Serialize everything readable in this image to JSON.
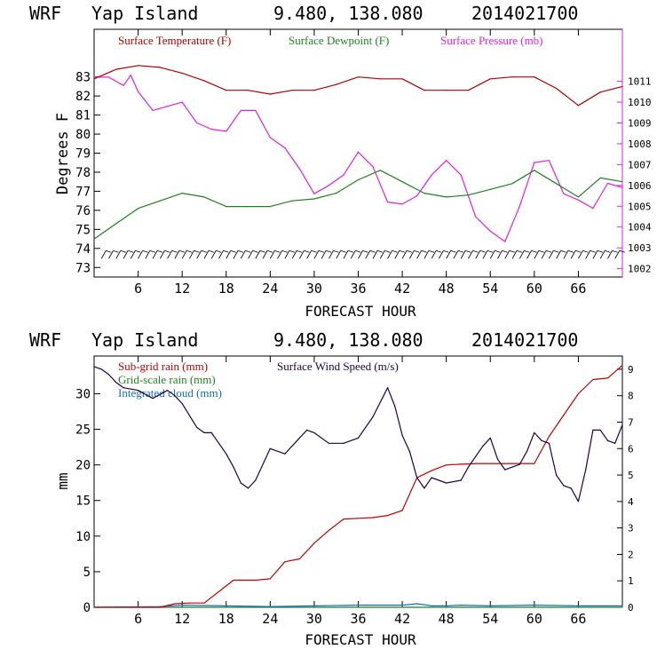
{
  "colors": {
    "temperature": "#b00000",
    "dewpoint": "#208020",
    "pressure": "#e020e0",
    "subgrid_rain": "#c00000",
    "gridscale_rain": "#208020",
    "cloud": "#1070c0",
    "wind": "#200040",
    "axes": "#000000"
  },
  "chart_data": [
    {
      "type": "line",
      "header": {
        "model": "WRF",
        "location": "Yap Island",
        "coords": "9.480, 138.080",
        "init": "2014021700"
      },
      "xlabel": "FORECAST HOUR",
      "ylabel": "Degrees F",
      "xlim": [
        0,
        72
      ],
      "ylim": [
        72.5,
        85.5
      ],
      "y2lim": [
        1001.6,
        1013.5
      ],
      "xticks": [
        6,
        12,
        18,
        24,
        30,
        36,
        42,
        48,
        54,
        60,
        66
      ],
      "yticks": [
        73,
        74,
        75,
        76,
        77,
        78,
        79,
        80,
        81,
        82,
        83
      ],
      "y2ticks": [
        1002,
        1003,
        1004,
        1005,
        1006,
        1007,
        1008,
        1009,
        1010,
        1011
      ],
      "legend": {
        "temperature": "Surface Temperature (F)",
        "dewpoint": "Surface Dewpoint (F)",
        "pressure": "Surface Pressure (mb)"
      },
      "wind_barb_level": 73.7,
      "series": [
        {
          "name": "Surface Temperature (F)",
          "axis": "left",
          "x": [
            0,
            3,
            6,
            9,
            12,
            15,
            18,
            21,
            24,
            27,
            30,
            33,
            36,
            39,
            42,
            45,
            48,
            51,
            54,
            57,
            60,
            63,
            66,
            69,
            72
          ],
          "values": [
            82.9,
            83.4,
            83.6,
            83.5,
            83.2,
            82.8,
            82.3,
            82.3,
            82.1,
            82.3,
            82.3,
            82.6,
            83.0,
            82.9,
            82.9,
            82.3,
            82.3,
            82.3,
            82.9,
            83.0,
            83.0,
            82.4,
            81.5,
            82.2,
            82.5
          ]
        },
        {
          "name": "Surface Dewpoint (F)",
          "axis": "left",
          "x": [
            0,
            3,
            6,
            9,
            12,
            15,
            18,
            21,
            24,
            27,
            30,
            33,
            36,
            39,
            42,
            45,
            48,
            51,
            54,
            57,
            60,
            63,
            66,
            69,
            72
          ],
          "values": [
            74.5,
            75.3,
            76.1,
            76.5,
            76.9,
            76.7,
            76.2,
            76.2,
            76.2,
            76.5,
            76.6,
            76.9,
            77.6,
            78.1,
            77.5,
            76.9,
            76.7,
            76.8,
            77.1,
            77.4,
            78.1,
            77.4,
            76.7,
            77.7,
            77.5
          ]
        },
        {
          "name": "Surface Pressure (mb)",
          "axis": "right",
          "x": [
            0,
            2,
            4,
            5,
            6,
            8,
            10,
            12,
            14,
            16,
            18,
            20,
            22,
            24,
            26,
            28,
            30,
            32,
            34,
            36,
            38,
            40,
            42,
            44,
            46,
            48,
            50,
            52,
            54,
            56,
            58,
            60,
            62,
            64,
            66,
            68,
            70,
            72
          ],
          "values": [
            1011.2,
            1011.2,
            1010.8,
            1011.3,
            1010.5,
            1009.6,
            1009.8,
            1010.0,
            1009.0,
            1008.7,
            1008.6,
            1009.6,
            1009.6,
            1008.3,
            1007.8,
            1006.8,
            1005.6,
            1006.0,
            1006.5,
            1007.6,
            1006.9,
            1005.2,
            1005.1,
            1005.5,
            1006.5,
            1007.2,
            1006.5,
            1004.5,
            1003.8,
            1003.3,
            1005.0,
            1007.1,
            1007.2,
            1005.6,
            1005.3,
            1004.9,
            1006.1,
            1005.9
          ]
        }
      ]
    },
    {
      "type": "line",
      "header": {
        "model": "WRF",
        "location": "Yap Island",
        "coords": "9.480, 138.080",
        "init": "2014021700"
      },
      "xlabel": "FORECAST HOUR",
      "ylabel": "mm",
      "xlim": [
        0,
        72
      ],
      "ylim": [
        0,
        35.3
      ],
      "y2lim": [
        0,
        9.5
      ],
      "xticks": [
        6,
        12,
        18,
        24,
        30,
        36,
        42,
        48,
        54,
        60,
        66
      ],
      "yticks": [
        0,
        5,
        10,
        15,
        20,
        25,
        30
      ],
      "y2ticks": [
        0,
        1,
        2,
        3,
        4,
        5,
        6,
        7,
        8,
        9
      ],
      "legend": {
        "subgrid": "Sub-grid rain (mm)",
        "gridscale": "Grid-scale rain (mm)",
        "cloud": "Integrated cloud (mm)",
        "wind": "Surface Wind Speed (m/s)"
      },
      "series": [
        {
          "name": "Sub-grid rain (mm)",
          "axis": "left",
          "x": [
            0,
            9,
            11,
            13,
            15,
            18,
            19,
            22,
            24,
            26,
            28,
            30,
            32,
            34,
            36,
            38,
            40,
            42,
            44,
            46,
            48,
            50,
            52,
            54,
            56,
            58,
            60,
            62,
            64,
            66,
            68,
            70,
            72
          ],
          "values": [
            0,
            0,
            0.5,
            0.6,
            0.6,
            3.0,
            3.8,
            3.8,
            4.0,
            6.4,
            6.8,
            9.0,
            10.8,
            12.4,
            12.5,
            12.6,
            12.9,
            13.6,
            18.2,
            19.2,
            20.0,
            20.1,
            20.2,
            20.2,
            20.2,
            20.2,
            20.2,
            24.0,
            27.0,
            30.0,
            32.0,
            32.2,
            34.0
          ]
        },
        {
          "name": "Grid-scale rain (mm)",
          "axis": "left",
          "x": [
            0,
            72
          ],
          "values": [
            0,
            0
          ]
        },
        {
          "name": "Integrated cloud (mm)",
          "axis": "left",
          "x": [
            0,
            9,
            12,
            18,
            24,
            30,
            36,
            42,
            44,
            46,
            48,
            50,
            54,
            60,
            66,
            72
          ],
          "values": [
            0,
            0.1,
            0.3,
            0.2,
            0.1,
            0.2,
            0.3,
            0.3,
            0.5,
            0.2,
            0.2,
            0.3,
            0.2,
            0.3,
            0.2,
            0.2
          ]
        },
        {
          "name": "Surface Wind Speed (m/s)",
          "axis": "right",
          "x": [
            0,
            1,
            2,
            3,
            4,
            6,
            8,
            10,
            11,
            12,
            14,
            15,
            16,
            17,
            18,
            19,
            20,
            21,
            22,
            24,
            26,
            28,
            29,
            30,
            32,
            34,
            36,
            38,
            40,
            41,
            42,
            43,
            44,
            45,
            46,
            48,
            50,
            51,
            52,
            53,
            54,
            55,
            56,
            57,
            58,
            59,
            60,
            61,
            62,
            63,
            64,
            65,
            66,
            67,
            68,
            69,
            70,
            71,
            72
          ],
          "values": [
            9.1,
            9.0,
            8.8,
            8.5,
            8.3,
            8.2,
            7.9,
            8.2,
            8.0,
            7.7,
            6.8,
            6.6,
            6.6,
            6.2,
            5.8,
            5.3,
            4.7,
            4.5,
            4.8,
            6.0,
            5.8,
            6.4,
            6.7,
            6.6,
            6.2,
            6.2,
            6.4,
            7.2,
            8.3,
            7.6,
            6.5,
            5.9,
            4.9,
            4.5,
            4.9,
            4.7,
            4.8,
            5.3,
            5.7,
            6.1,
            6.4,
            5.6,
            5.2,
            5.3,
            5.4,
            5.9,
            6.6,
            6.3,
            6.2,
            5.0,
            4.6,
            4.5,
            4.0,
            5.2,
            6.7,
            6.7,
            6.3,
            6.2,
            6.9
          ]
        }
      ]
    }
  ]
}
